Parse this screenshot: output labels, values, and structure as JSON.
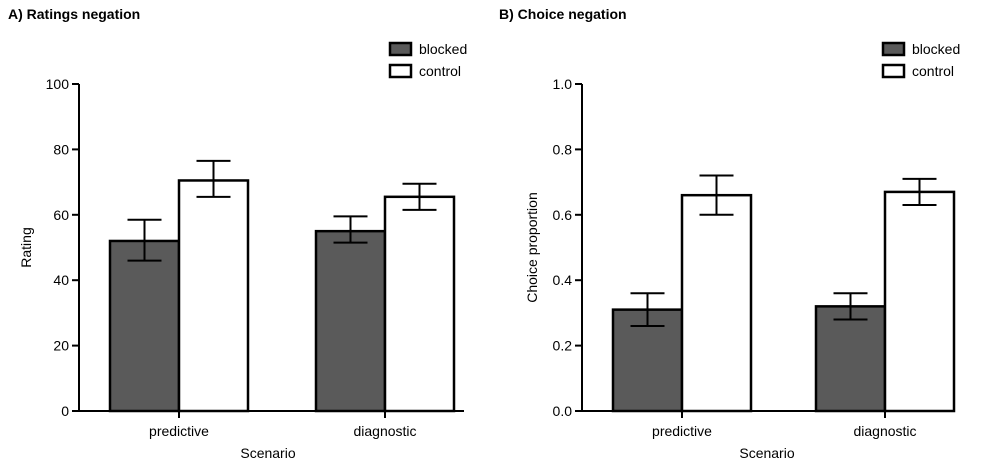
{
  "chart_data": [
    {
      "panel_title": "A) Ratings negation",
      "type": "bar",
      "categories": [
        "predictive",
        "diagnostic"
      ],
      "xlabel": "Scenario",
      "ylabel": "Rating",
      "ylim": [
        0,
        100
      ],
      "yticks": [
        0,
        20,
        40,
        60,
        80,
        100
      ],
      "ytick_labels": [
        "0",
        "20",
        "40",
        "60",
        "80",
        "100"
      ],
      "legend_position": "top-right",
      "series": [
        {
          "name": "blocked",
          "color": "#5a5a5a",
          "values": [
            52,
            55
          ],
          "err_low": [
            46,
            51.5
          ],
          "err_high": [
            58.5,
            59.5
          ]
        },
        {
          "name": "control",
          "color": "#ffffff",
          "values": [
            70.5,
            65.5
          ],
          "err_low": [
            65.5,
            61.5
          ],
          "err_high": [
            76.5,
            69.5
          ]
        }
      ]
    },
    {
      "panel_title": "B) Choice negation",
      "type": "bar",
      "categories": [
        "predictive",
        "diagnostic"
      ],
      "xlabel": "Scenario",
      "ylabel": "Choice proportion",
      "ylim": [
        0,
        1
      ],
      "yticks": [
        0,
        0.2,
        0.4,
        0.6,
        0.8,
        1.0
      ],
      "ytick_labels": [
        "0.0",
        "0.2",
        "0.4",
        "0.6",
        "0.8",
        "1.0"
      ],
      "legend_position": "top-right",
      "series": [
        {
          "name": "blocked",
          "color": "#5a5a5a",
          "values": [
            0.31,
            0.32
          ],
          "err_low": [
            0.26,
            0.28
          ],
          "err_high": [
            0.36,
            0.36
          ]
        },
        {
          "name": "control",
          "color": "#ffffff",
          "values": [
            0.66,
            0.67
          ],
          "err_low": [
            0.6,
            0.63
          ],
          "err_high": [
            0.72,
            0.71
          ]
        }
      ]
    }
  ]
}
